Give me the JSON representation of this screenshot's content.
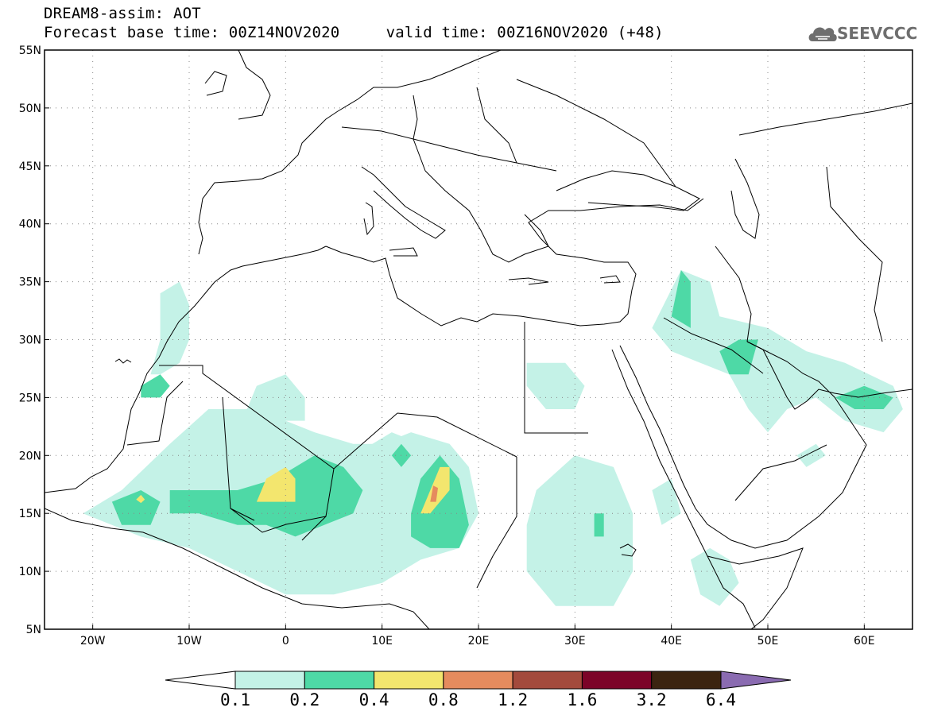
{
  "title_line1": "DREAM8-assim: AOT",
  "title_line2": "Forecast base time: 00Z14NOV2020     valid time: 00Z16NOV2020 (+48)",
  "logo": {
    "text": "SEEVCCC",
    "icon": "cloud-icon"
  },
  "map": {
    "projection": "lat-lon",
    "lon_range": [
      -25,
      65
    ],
    "lat_range": [
      5,
      55
    ],
    "grid": "dotted",
    "lat_ticks": [
      {
        "value": 55,
        "label": "55N"
      },
      {
        "value": 50,
        "label": "50N"
      },
      {
        "value": 45,
        "label": "45N"
      },
      {
        "value": 40,
        "label": "40N"
      },
      {
        "value": 35,
        "label": "35N"
      },
      {
        "value": 30,
        "label": "30N"
      },
      {
        "value": 25,
        "label": "25N"
      },
      {
        "value": 20,
        "label": "20N"
      },
      {
        "value": 15,
        "label": "15N"
      },
      {
        "value": 10,
        "label": "10N"
      },
      {
        "value": 5,
        "label": "5N"
      }
    ],
    "lon_ticks": [
      {
        "value": -20,
        "label": "20W"
      },
      {
        "value": -10,
        "label": "10W"
      },
      {
        "value": 0,
        "label": "0"
      },
      {
        "value": 10,
        "label": "10E"
      },
      {
        "value": 20,
        "label": "20E"
      },
      {
        "value": 30,
        "label": "30E"
      },
      {
        "value": 40,
        "label": "40E"
      },
      {
        "value": 50,
        "label": "50E"
      },
      {
        "value": 60,
        "label": "60E"
      }
    ],
    "aot_regions": [
      {
        "level": 1,
        "points": [
          [
            -17,
            17
          ],
          [
            -12,
            21
          ],
          [
            -8,
            24
          ],
          [
            -3,
            24
          ],
          [
            0,
            23
          ],
          [
            3,
            22
          ],
          [
            7,
            21
          ],
          [
            10,
            21
          ],
          [
            13,
            22
          ],
          [
            17,
            21
          ],
          [
            19,
            19
          ],
          [
            20,
            15
          ],
          [
            18,
            12
          ],
          [
            14,
            11
          ],
          [
            10,
            9
          ],
          [
            5,
            8
          ],
          [
            0,
            8
          ],
          [
            -5,
            10
          ],
          [
            -10,
            12
          ],
          [
            -15,
            13
          ],
          [
            -18,
            14
          ],
          [
            -21,
            15
          ]
        ]
      },
      {
        "level": 1,
        "points": [
          [
            -13,
            27
          ],
          [
            -11,
            28
          ],
          [
            -10,
            30
          ],
          [
            -10,
            33
          ],
          [
            -11,
            35
          ],
          [
            -13,
            34
          ],
          [
            -13,
            30
          ],
          [
            -14,
            27
          ]
        ]
      },
      {
        "level": 1,
        "points": [
          [
            -3,
            26
          ],
          [
            0,
            27
          ],
          [
            2,
            25
          ],
          [
            2,
            23
          ],
          [
            -2,
            23
          ],
          [
            -4,
            24
          ]
        ]
      },
      {
        "level": 1,
        "points": [
          [
            9,
            21
          ],
          [
            11,
            22
          ],
          [
            14,
            21
          ],
          [
            13,
            19
          ],
          [
            10,
            19
          ]
        ]
      },
      {
        "level": 1,
        "points": [
          [
            25,
            28
          ],
          [
            29,
            28
          ],
          [
            31,
            26
          ],
          [
            30,
            24
          ],
          [
            27,
            24
          ],
          [
            25,
            26
          ]
        ]
      },
      {
        "level": 1,
        "points": [
          [
            26,
            17
          ],
          [
            30,
            20
          ],
          [
            34,
            19
          ],
          [
            36,
            15
          ],
          [
            36,
            10
          ],
          [
            34,
            7
          ],
          [
            28,
            7
          ],
          [
            25,
            10
          ],
          [
            25,
            14
          ]
        ]
      },
      {
        "level": 1,
        "points": [
          [
            38,
            31
          ],
          [
            41,
            36
          ],
          [
            44,
            35
          ],
          [
            45,
            32
          ],
          [
            50,
            31
          ],
          [
            54,
            29
          ],
          [
            58,
            28
          ],
          [
            63,
            26
          ],
          [
            64,
            24
          ],
          [
            62,
            22
          ],
          [
            58,
            23
          ],
          [
            55,
            25
          ],
          [
            52,
            24
          ],
          [
            50,
            22
          ],
          [
            48,
            24
          ],
          [
            46,
            27
          ],
          [
            43,
            28
          ],
          [
            40,
            29
          ]
        ]
      },
      {
        "level": 1,
        "points": [
          [
            42,
            11
          ],
          [
            44,
            12
          ],
          [
            46,
            11
          ],
          [
            47,
            9
          ],
          [
            45,
            7
          ],
          [
            43,
            8
          ]
        ]
      },
      {
        "level": 1,
        "points": [
          [
            38,
            17
          ],
          [
            40,
            18
          ],
          [
            41,
            15
          ],
          [
            39,
            14
          ]
        ]
      },
      {
        "level": 1,
        "points": [
          [
            53,
            20
          ],
          [
            55,
            21
          ],
          [
            56,
            20
          ],
          [
            54,
            19
          ]
        ]
      },
      {
        "level": 2,
        "points": [
          [
            -12,
            17
          ],
          [
            -9,
            17
          ],
          [
            -5,
            17
          ],
          [
            -1,
            18
          ],
          [
            3,
            20
          ],
          [
            6,
            19
          ],
          [
            8,
            17
          ],
          [
            7,
            15
          ],
          [
            4,
            14
          ],
          [
            1,
            13
          ],
          [
            -2,
            14
          ],
          [
            -5,
            14
          ],
          [
            -9,
            15
          ],
          [
            -12,
            15
          ]
        ]
      },
      {
        "level": 2,
        "points": [
          [
            -18,
            16
          ],
          [
            -15,
            17
          ],
          [
            -13,
            16
          ],
          [
            -14,
            14
          ],
          [
            -17,
            14
          ]
        ]
      },
      {
        "level": 2,
        "points": [
          [
            -15,
            26
          ],
          [
            -13,
            27
          ],
          [
            -12,
            26
          ],
          [
            -13,
            25
          ],
          [
            -15,
            25
          ]
        ]
      },
      {
        "level": 2,
        "points": [
          [
            11,
            20
          ],
          [
            12,
            21
          ],
          [
            13,
            20
          ],
          [
            12,
            19
          ]
        ]
      },
      {
        "level": 2,
        "points": [
          [
            13,
            15
          ],
          [
            14,
            18
          ],
          [
            16,
            20
          ],
          [
            18,
            18
          ],
          [
            19,
            14
          ],
          [
            18,
            12
          ],
          [
            15,
            12
          ],
          [
            13,
            13
          ]
        ]
      },
      {
        "level": 2,
        "points": [
          [
            40,
            32
          ],
          [
            41,
            36
          ],
          [
            42,
            35
          ],
          [
            42,
            31
          ]
        ]
      },
      {
        "level": 2,
        "points": [
          [
            45,
            29
          ],
          [
            47,
            30
          ],
          [
            49,
            30
          ],
          [
            48,
            27
          ],
          [
            46,
            27
          ]
        ]
      },
      {
        "level": 2,
        "points": [
          [
            57,
            25
          ],
          [
            60,
            26
          ],
          [
            63,
            25
          ],
          [
            62,
            24
          ],
          [
            59,
            24
          ]
        ]
      },
      {
        "level": 2,
        "points": [
          [
            32,
            15
          ],
          [
            33,
            15
          ],
          [
            33,
            13
          ],
          [
            32,
            13
          ]
        ]
      },
      {
        "level": 3,
        "points": [
          [
            -2,
            18
          ],
          [
            0,
            19
          ],
          [
            1,
            18
          ],
          [
            1,
            16
          ],
          [
            -1,
            16
          ],
          [
            -3,
            16
          ]
        ]
      },
      {
        "level": 3,
        "points": [
          [
            14,
            15
          ],
          [
            16,
            19
          ],
          [
            17,
            19
          ],
          [
            17,
            17
          ],
          [
            15,
            15
          ]
        ]
      },
      {
        "level": 3,
        "points": [
          [
            -15.5,
            16.2
          ],
          [
            -15,
            16.6
          ],
          [
            -14.6,
            16.2
          ],
          [
            -15,
            15.9
          ]
        ]
      },
      {
        "level": 4,
        "points": [
          [
            15,
            16
          ],
          [
            15.3,
            17.4
          ],
          [
            15.8,
            17.2
          ],
          [
            15.6,
            16
          ]
        ]
      }
    ]
  },
  "colorbar": {
    "colors": [
      "#ffffff",
      "#c4f2e7",
      "#4ed9a6",
      "#f3e66e",
      "#e58b5e",
      "#a34a3c",
      "#7c0428",
      "#3b2410",
      "#8a6bb1"
    ],
    "labels": [
      "0.1",
      "0.2",
      "0.4",
      "0.8",
      "1.2",
      "1.6",
      "3.2",
      "6.4"
    ]
  }
}
